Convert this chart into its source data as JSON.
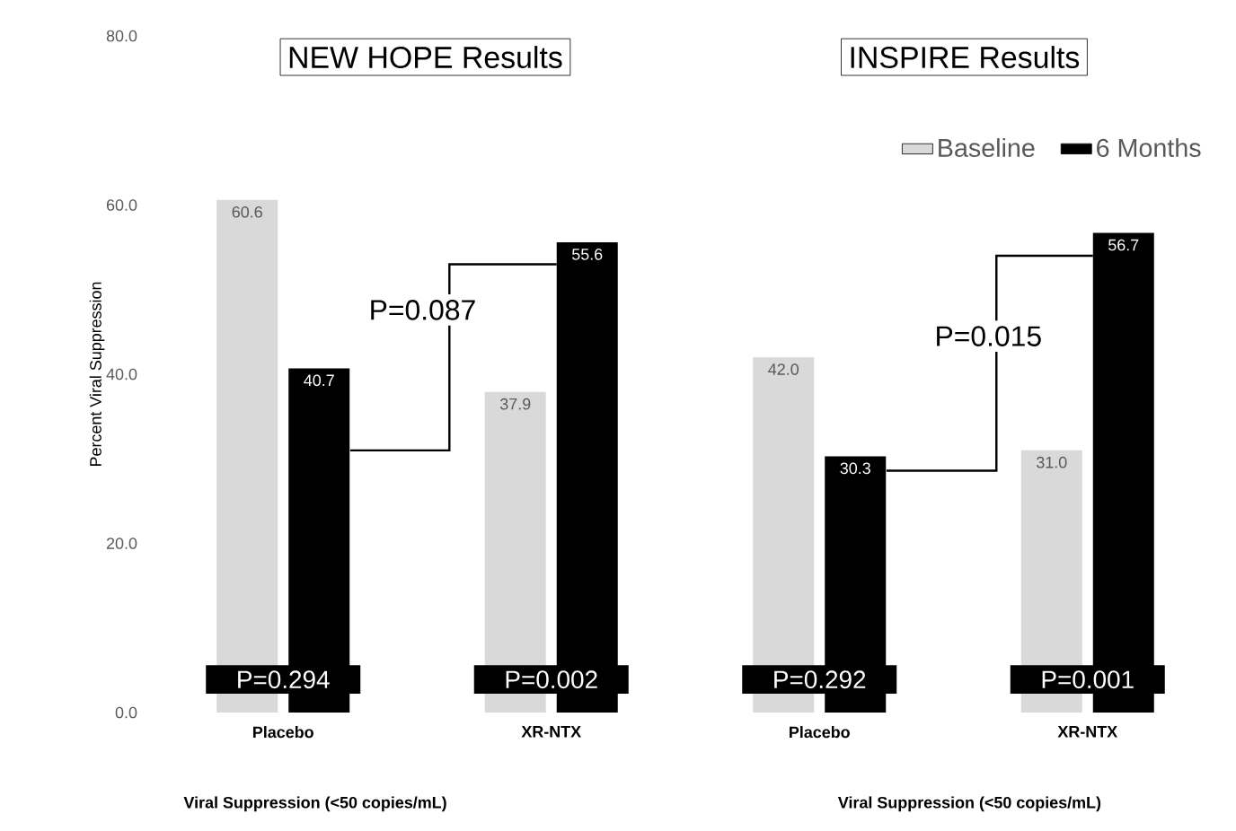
{
  "chart_data": {
    "type": "bar",
    "ylabel": "Percent Viral Suppression",
    "categories": [
      "Placebo",
      "XR-NTX",
      "Placebo",
      "XR-NTX"
    ],
    "series": [
      {
        "name": "Baseline",
        "color": "#d9d9d9",
        "values": [
          60.6,
          37.9,
          42.0,
          31.0
        ],
        "value_labels": [
          "60.6",
          "37.9",
          "42.0",
          "31.0"
        ]
      },
      {
        "name": "6 Months",
        "color": "#000000",
        "values": [
          40.7,
          55.6,
          30.3,
          56.7
        ],
        "value_labels": [
          "40.7",
          "55.6",
          "30.3",
          "56.7"
        ]
      }
    ],
    "ylim": [
      0,
      80
    ],
    "yticks": [
      {
        "value": 0,
        "label": "0.0"
      },
      {
        "value": 20,
        "label": "20.0"
      },
      {
        "value": 40,
        "label": "40.0"
      },
      {
        "value": 60,
        "label": "60.0"
      },
      {
        "value": 80,
        "label": "80.0"
      }
    ],
    "legend": "top right",
    "annotations": [
      "NEW HOPE Results",
      "INSPIRE Results",
      "P=0.087",
      "P=0.015",
      "P=0.294",
      "P=0.002",
      "P=0.292",
      "P=0.001",
      "Viral Suppression (<50 copies/mL)",
      "Viral Suppression (<50 copies/mL)"
    ]
  }
}
